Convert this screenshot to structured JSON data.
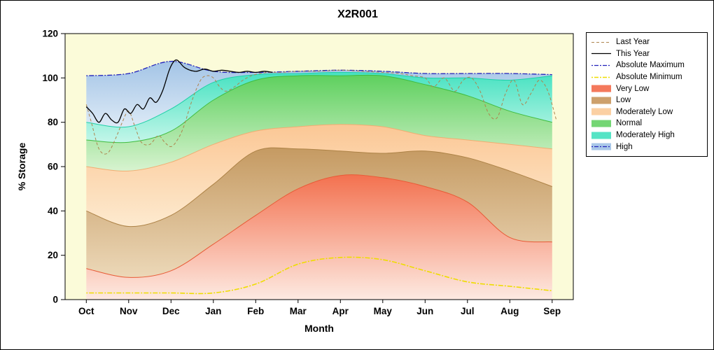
{
  "window": {
    "title": "X2R001"
  },
  "chart_data": {
    "type": "area",
    "title": "X2R001",
    "xlabel": "Month",
    "ylabel": "% Storage",
    "ylim": [
      0,
      120
    ],
    "yticks": [
      0,
      20,
      40,
      60,
      80,
      100,
      120
    ],
    "months": [
      "Oct",
      "Nov",
      "Dec",
      "Jan",
      "Feb",
      "Mar",
      "Apr",
      "May",
      "Jun",
      "Jul",
      "Aug",
      "Sep"
    ],
    "plot_bg": "#fbfbd9",
    "bands": [
      {
        "name": "Very Low",
        "colorTop": "#f3714f",
        "colorBottom": "#fdeae2",
        "edge": "#e85a36",
        "top": [
          14,
          10,
          13,
          25,
          38,
          50,
          56,
          55,
          51,
          44,
          28,
          26
        ]
      },
      {
        "name": "Low",
        "colorTop": "#c59a62",
        "colorBottom": "#ecd8b8",
        "edge": "#ad8246",
        "top": [
          40,
          33,
          38,
          52,
          67,
          68,
          67,
          66,
          67,
          64,
          58,
          51
        ]
      },
      {
        "name": "Moderately Low",
        "colorTop": "#fbc795",
        "colorBottom": "#fdeacf",
        "edge": "#f0ad72",
        "top": [
          60,
          58,
          62,
          70,
          76,
          78,
          79,
          78,
          74,
          72,
          70,
          68
        ]
      },
      {
        "name": "Normal",
        "colorTop": "#5ed05e",
        "colorBottom": "#d8f3d0",
        "edge": "#3fbc3f",
        "top": [
          72,
          71,
          76,
          90,
          99,
          101,
          101,
          101,
          97,
          92,
          85,
          80
        ]
      },
      {
        "name": "Moderately High",
        "colorTop": "#46e2c1",
        "colorBottom": "#c4f6e9",
        "edge": "#1fd0a8",
        "top": [
          80,
          78,
          86,
          98,
          101.5,
          102,
          102.5,
          102,
          100,
          100,
          99,
          101
        ]
      },
      {
        "name": "High",
        "colorTop": "#a3c4e6",
        "colorBottom": "#ddeaf6",
        "edge": "",
        "top": [
          101,
          102,
          107.5,
          103,
          102.5,
          103,
          103.5,
          103,
          102,
          102,
          102,
          101.5
        ]
      }
    ],
    "lines": [
      {
        "name": "Absolute Minimum",
        "color": "#eedd00",
        "dash": "2 2 7 2",
        "width": 1.6,
        "x": [
          0,
          1,
          2,
          3,
          4,
          5,
          6,
          7,
          8,
          9,
          10,
          11
        ],
        "y": [
          3,
          3,
          3,
          3,
          7,
          16,
          19,
          18,
          13,
          8,
          6,
          4
        ]
      },
      {
        "name": "Absolute Maximum",
        "color": "#2222bb",
        "dash": "2 2 7 2",
        "width": 1.3,
        "x": [
          0,
          1,
          2,
          3,
          4,
          5,
          6,
          7,
          8,
          9,
          10,
          11
        ],
        "y": [
          101,
          102,
          107.5,
          103,
          102.5,
          103,
          103.5,
          103,
          102,
          102,
          102,
          101.5
        ]
      },
      {
        "name": "Last Year",
        "color": "#ad854e",
        "dash": "4 3",
        "width": 1,
        "x": [
          0,
          0.12,
          0.3,
          0.5,
          0.7,
          0.85,
          1.0,
          1.15,
          1.3,
          1.5,
          1.7,
          1.85,
          2.0,
          2.15,
          2.3,
          2.5,
          2.7,
          2.85,
          3.0,
          3.15,
          3.3,
          3.5,
          3.7,
          3.9,
          4.1,
          4.3,
          4.6,
          5.0,
          5.5,
          6.0,
          6.5,
          7.0,
          7.4,
          7.7,
          8.0,
          8.2,
          8.45,
          8.7,
          8.9,
          9.1,
          9.3,
          9.5,
          9.7,
          9.9,
          10.1,
          10.3,
          10.5,
          10.7,
          10.9,
          11.1
        ],
        "y": [
          88,
          80,
          68,
          66,
          73,
          80,
          85,
          78,
          71,
          70,
          74,
          71,
          69,
          72,
          78,
          90,
          99,
          101,
          100,
          96,
          94,
          96,
          99,
          101,
          102,
          102.5,
          102.5,
          103,
          103,
          103.5,
          103,
          102.5,
          102,
          101,
          100,
          96,
          100,
          94,
          99,
          100,
          94,
          84,
          82,
          93,
          99,
          88,
          93,
          99,
          94,
          81
        ]
      },
      {
        "name": "This Year",
        "color": "#000000",
        "dash": "",
        "width": 1.3,
        "x": [
          0,
          0.15,
          0.3,
          0.45,
          0.6,
          0.75,
          0.9,
          1.05,
          1.2,
          1.35,
          1.5,
          1.65,
          1.8,
          1.95,
          2.05,
          2.15,
          2.3,
          2.45,
          2.6,
          2.8,
          3.0,
          3.2,
          3.4,
          3.6,
          3.8,
          4.0,
          4.2,
          4.4
        ],
        "y": [
          87,
          84,
          80,
          84,
          81,
          80,
          86,
          84,
          88,
          86,
          91,
          89,
          94,
          103,
          107,
          108,
          105,
          103.5,
          103,
          104,
          103,
          103.5,
          103,
          102.5,
          103,
          102.5,
          103,
          102.5
        ]
      }
    ],
    "legend": [
      {
        "label": "Last Year",
        "type": "line",
        "color": "#ad854e",
        "dash": "4 3",
        "width": 1
      },
      {
        "label": "This Year",
        "type": "line",
        "color": "#000000",
        "dash": "",
        "width": 1.3
      },
      {
        "label": "Absolute Maximum",
        "type": "line",
        "color": "#2222bb",
        "dash": "2 2 6 2",
        "width": 1.3
      },
      {
        "label": "Absolute Minimum",
        "type": "line",
        "color": "#eedd00",
        "dash": "2 2 6 2",
        "width": 1.6
      },
      {
        "label": "Very Low",
        "type": "patch",
        "fill": "#f4795c"
      },
      {
        "label": "Low",
        "type": "patch",
        "fill": "#cda06c"
      },
      {
        "label": "Moderately Low",
        "type": "patch",
        "fill": "#fbd0a3"
      },
      {
        "label": "Normal",
        "type": "patch",
        "fill": "#74d674"
      },
      {
        "label": "Moderately High",
        "type": "patch",
        "fill": "#55e4c5"
      },
      {
        "label": "High",
        "type": "patch",
        "fill": "#a9c7e8",
        "overlay": {
          "color": "#2222bb",
          "dash": "2 2 6 2"
        }
      }
    ]
  }
}
